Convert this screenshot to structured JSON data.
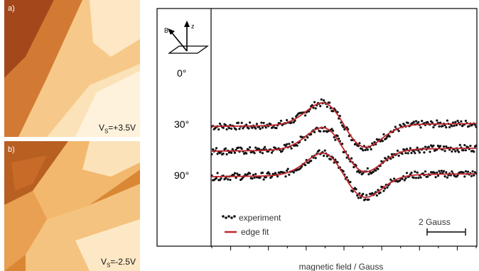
{
  "panels": [
    {
      "tag": "a)",
      "bias_symbol": "V",
      "bias_subscript": "S",
      "bias_value": "=+3.5V"
    },
    {
      "tag": "b)",
      "bias_symbol": "V",
      "bias_subscript": "S",
      "bias_value": "=-2.5V"
    }
  ],
  "inset": {
    "field_label": "B",
    "normal_label": "z"
  },
  "colors": {
    "experiment": "#111111",
    "edge_fit": "#c0262c",
    "stm_light": "#fbe4bd",
    "stm_mid": "#e58f3c",
    "stm_dark": "#8a3d14"
  },
  "chart_data": {
    "type": "line",
    "xlabel": "magnetic field / Gauss",
    "ylabel": "",
    "xlim": [
      -7,
      7
    ],
    "scale_bar": {
      "label": "2 Gauss",
      "length_gauss": 2
    },
    "legend": {
      "position": "bottom-left",
      "items": [
        "experiment",
        "edge fit"
      ]
    },
    "series": [
      {
        "name": "0°",
        "center": 0,
        "half_width": 1.15,
        "amplitude": 1.0,
        "offset": 3.2,
        "x": [
          -7,
          -6,
          -5,
          -4,
          -3,
          -2,
          -1.5,
          -1.1,
          -0.6,
          0,
          0.6,
          1.1,
          1.5,
          2,
          3,
          4,
          5,
          6,
          7
        ],
        "y": [
          3.3,
          3.31,
          3.4,
          3.58,
          3.85,
          4.28,
          4.6,
          4.7,
          4.2,
          3.2,
          2.2,
          1.7,
          1.8,
          2.12,
          2.55,
          2.82,
          2.95,
          3.05,
          3.1
        ]
      },
      {
        "name": "30°",
        "center": 0,
        "half_width": 1.15,
        "amplitude": 1.0,
        "offset": 1.75,
        "x": [
          -7,
          -6,
          -5,
          -4,
          -3,
          -2,
          -1.5,
          -1.1,
          -0.6,
          0,
          0.6,
          1.1,
          1.5,
          2,
          3,
          4,
          5,
          6,
          7
        ],
        "y": [
          1.85,
          1.86,
          1.95,
          2.13,
          2.4,
          2.83,
          3.15,
          3.25,
          2.75,
          1.75,
          0.75,
          0.25,
          0.35,
          0.67,
          1.1,
          1.37,
          1.5,
          1.6,
          1.65
        ]
      },
      {
        "name": "90°",
        "center": 0,
        "half_width": 1.15,
        "amplitude": 1.0,
        "offset": 0.25,
        "x": [
          -7,
          -6,
          -5,
          -4,
          -3,
          -2,
          -1.5,
          -1.1,
          -0.6,
          0,
          0.6,
          1.1,
          1.5,
          2,
          3,
          4,
          5,
          6,
          7
        ],
        "y": [
          0.35,
          0.36,
          0.45,
          0.63,
          0.9,
          1.33,
          1.65,
          1.75,
          1.25,
          0.25,
          -0.75,
          -1.25,
          -1.15,
          -0.83,
          -0.4,
          -0.13,
          0,
          0.1,
          0.15
        ]
      }
    ]
  }
}
